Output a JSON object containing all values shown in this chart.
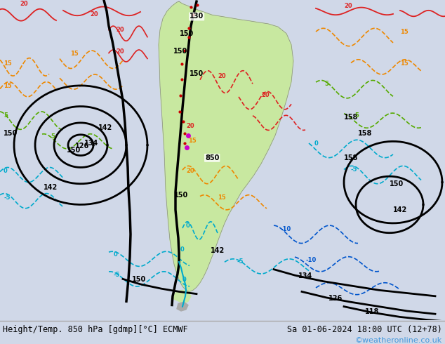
{
  "title_left": "Height/Temp. 850 hPa [gdmp][°C] ECMWF",
  "title_right": "Sa 01-06-2024 18:00 UTC (12+78)",
  "watermark": "©weatheronline.co.uk",
  "bg_color": "#d0d8e8",
  "land_color": "#c8e8a0",
  "ocean_color": "#d0d8e8",
  "border_color": "#888888",
  "bottom_bar_color": "#f0f0f0",
  "title_fontsize": 9,
  "watermark_color": "#4499dd"
}
